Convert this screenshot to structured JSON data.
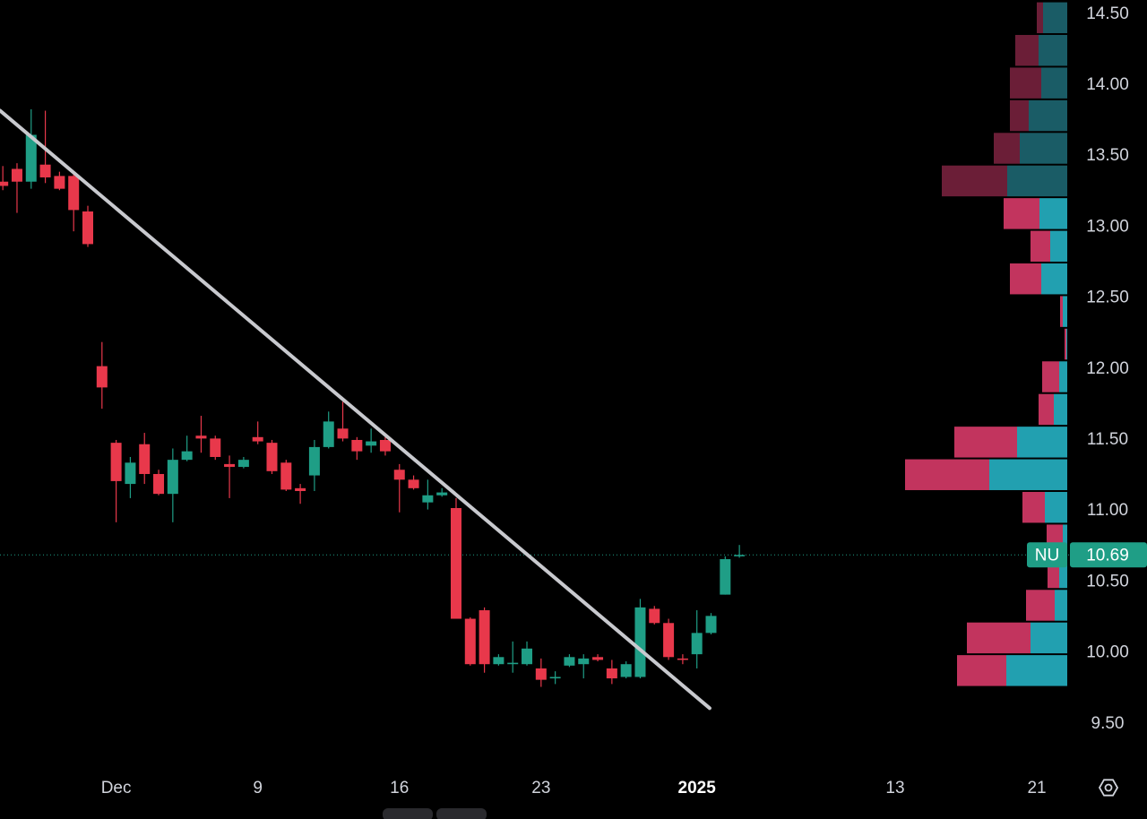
{
  "chart_data": {
    "type": "candlestick",
    "symbol": "NU",
    "last_price": 10.69,
    "last_price_label": "10.69",
    "up_color": "#1f9e86",
    "down_color": "#e8384b",
    "x": [
      0,
      1,
      2,
      3,
      4,
      5,
      6,
      7,
      8,
      9,
      10,
      11,
      12,
      13,
      14,
      15,
      16,
      17,
      18,
      19,
      20,
      21,
      22,
      23,
      24,
      25,
      26,
      27,
      28,
      29,
      30,
      31,
      32,
      33,
      34,
      35,
      36,
      37,
      38,
      39,
      40,
      41,
      42,
      43,
      44,
      45,
      46,
      47,
      48,
      49,
      50,
      51,
      52
    ],
    "open": [
      13.32,
      13.41,
      13.32,
      13.44,
      13.36,
      13.36,
      13.11,
      12.02,
      11.48,
      11.19,
      11.47,
      11.26,
      11.12,
      11.36,
      11.53,
      11.51,
      11.33,
      11.31,
      11.52,
      11.48,
      11.34,
      11.16,
      11.25,
      11.45,
      11.58,
      11.5,
      11.46,
      11.5,
      11.29,
      11.22,
      11.06,
      11.11,
      11.02,
      10.24,
      10.3,
      9.92,
      9.92,
      9.92,
      9.89,
      9.82,
      9.91,
      9.92,
      9.97,
      9.89,
      9.83,
      9.83,
      10.31,
      10.21,
      9.96,
      9.99,
      10.14,
      10.41,
      10.68
    ],
    "high": [
      13.43,
      13.45,
      13.83,
      13.82,
      13.39,
      13.39,
      13.15,
      12.19,
      11.5,
      11.38,
      11.55,
      11.29,
      11.44,
      11.53,
      11.67,
      11.53,
      11.39,
      11.38,
      11.63,
      11.5,
      11.36,
      11.19,
      11.5,
      11.7,
      11.77,
      11.52,
      11.58,
      11.52,
      11.33,
      11.25,
      11.22,
      11.16,
      11.09,
      10.25,
      10.32,
      9.99,
      10.08,
      10.08,
      9.96,
      9.87,
      9.99,
      9.99,
      9.99,
      9.95,
      9.94,
      10.38,
      10.33,
      10.24,
      9.99,
      10.3,
      10.28,
      10.68,
      10.76
    ],
    "low": [
      13.26,
      13.1,
      13.27,
      13.31,
      13.26,
      12.97,
      12.86,
      11.72,
      10.92,
      11.09,
      11.19,
      11.11,
      10.92,
      11.35,
      11.41,
      11.36,
      11.09,
      11.3,
      11.47,
      11.26,
      11.14,
      11.05,
      11.14,
      11.44,
      11.49,
      11.36,
      11.41,
      11.39,
      10.99,
      11.15,
      11.01,
      11.1,
      10.24,
      9.91,
      9.86,
      9.91,
      9.86,
      9.91,
      9.76,
      9.78,
      9.9,
      9.82,
      9.94,
      9.78,
      9.82,
      9.82,
      10.2,
      9.95,
      9.92,
      9.89,
      10.13,
      10.41,
      10.67
    ],
    "close": [
      13.29,
      13.32,
      13.65,
      13.35,
      13.27,
      13.12,
      12.88,
      11.87,
      11.21,
      11.34,
      11.26,
      11.12,
      11.36,
      11.42,
      11.51,
      11.38,
      11.31,
      11.36,
      11.49,
      11.28,
      11.15,
      11.14,
      11.45,
      11.63,
      11.51,
      11.42,
      11.49,
      11.42,
      11.22,
      11.16,
      11.11,
      11.13,
      10.24,
      9.92,
      9.92,
      9.97,
      9.93,
      10.03,
      9.81,
      9.83,
      9.97,
      9.96,
      9.95,
      9.82,
      9.92,
      10.32,
      10.21,
      9.97,
      9.95,
      10.14,
      10.26,
      10.66,
      10.69
    ],
    "trendline": {
      "color": "#c8c9ce",
      "x": [
        -0.19,
        49.9
      ],
      "y": [
        13.82,
        9.61
      ]
    },
    "volume_profile": {
      "bins": [
        9.76,
        9.99,
        10.22,
        10.45,
        10.68,
        10.91,
        11.14,
        11.37,
        11.6,
        11.83,
        12.06,
        12.29,
        12.52,
        12.75,
        12.98,
        13.21,
        13.44,
        13.67,
        13.9,
        14.13,
        14.36,
        14.59
      ],
      "sell": [
        55,
        71,
        32,
        13,
        18,
        25,
        94,
        70,
        17,
        19,
        2,
        3,
        35,
        22,
        40,
        73,
        29,
        21,
        35,
        26,
        7
      ],
      "buy": [
        68,
        41,
        14,
        9,
        5,
        25,
        87,
        56,
        15,
        9,
        1,
        5,
        29,
        19,
        31,
        67,
        53,
        43,
        29,
        32,
        27
      ],
      "value_area": [
        9.76,
        13.21
      ],
      "sell_color": "#c2345e",
      "buy_color": "#22a0b0",
      "sell_color_dim": "#6b1e37",
      "buy_color_dim": "#1a5c66"
    },
    "xlim": [
      -0.2,
      75.4
    ],
    "xticks": [
      {
        "value": 8,
        "label": "Dec"
      },
      {
        "value": 18,
        "label": "9"
      },
      {
        "value": 28,
        "label": "16"
      },
      {
        "value": 38,
        "label": "23"
      },
      {
        "value": 49,
        "label": "2025"
      },
      {
        "value": 63,
        "label": "13"
      },
      {
        "value": 73,
        "label": "21"
      }
    ],
    "ylim": [
      9.17,
      14.6
    ],
    "yticks": [
      {
        "value": 9.5,
        "label": "9.50"
      },
      {
        "value": 10,
        "label": "10.00"
      },
      {
        "value": 10.5,
        "label": "10.50"
      },
      {
        "value": 11,
        "label": "11.00"
      },
      {
        "value": 11.5,
        "label": "11.50"
      },
      {
        "value": 12,
        "label": "12.00"
      },
      {
        "value": 12.5,
        "label": "12.50"
      },
      {
        "value": 13,
        "label": "13.00"
      },
      {
        "value": 13.5,
        "label": "13.50"
      },
      {
        "value": 14,
        "label": "14.00"
      },
      {
        "value": 14.5,
        "label": "14.50"
      }
    ]
  }
}
